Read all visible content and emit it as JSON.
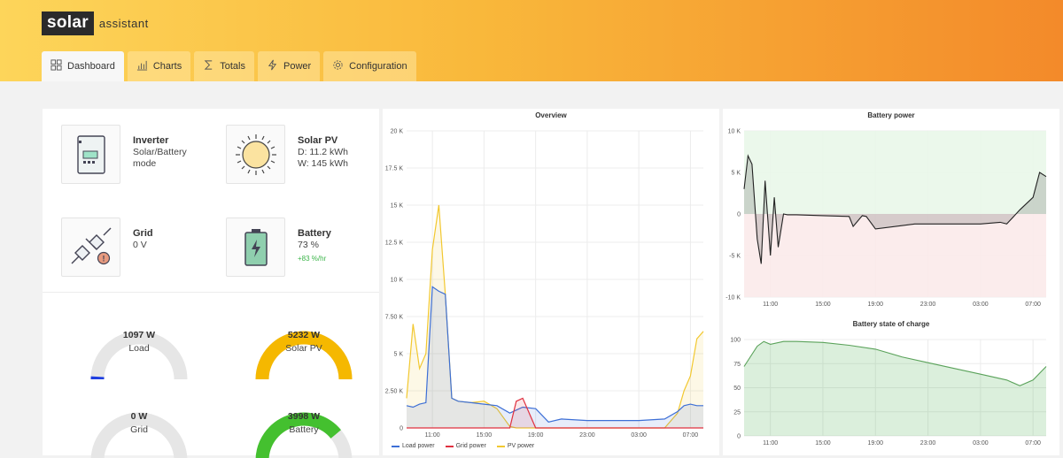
{
  "app": {
    "logo_box": "solar",
    "logo_text": "assistant"
  },
  "tabs": [
    {
      "label": "Dashboard",
      "icon": "grid-icon",
      "active": true
    },
    {
      "label": "Charts",
      "icon": "bar-chart-icon",
      "active": false
    },
    {
      "label": "Totals",
      "icon": "sigma-icon",
      "active": false
    },
    {
      "label": "Power",
      "icon": "lightning-icon",
      "active": false
    },
    {
      "label": "Configuration",
      "icon": "gear-icon",
      "active": false
    }
  ],
  "cards": {
    "inverter": {
      "title": "Inverter",
      "line1": "Solar/Battery",
      "line2": "mode"
    },
    "solar": {
      "title": "Solar PV",
      "line1": "D: 11.2 kWh",
      "line2": "W: 145 kWh"
    },
    "grid": {
      "title": "Grid",
      "line1": "0 V"
    },
    "battery": {
      "title": "Battery",
      "line1": "73 %",
      "sub": "+83 %/hr"
    }
  },
  "gauges": {
    "load": {
      "value": "1097 W",
      "label": "Load",
      "fraction": 0.02,
      "color": "#1f3fe0"
    },
    "solar": {
      "value": "5232 W",
      "label": "Solar PV",
      "fraction": 1.0,
      "color": "#f5b800"
    },
    "grid": {
      "value": "0 W",
      "label": "Grid",
      "fraction": 0.0,
      "color": "#cccccc"
    },
    "battery": {
      "value": "3998 W",
      "label": "Battery",
      "fraction": 0.78,
      "color": "#44c02f"
    }
  },
  "colors": {
    "load": "#3d6fd6",
    "grid": "#e0303f",
    "pv": "#f2c830",
    "pos_band": "#e9f7e9",
    "neg_band": "#fbeaea",
    "soc": "#4caf50"
  },
  "chart_data": [
    {
      "type": "line",
      "title": "Overview",
      "x_ticks": [
        "11:00",
        "15:00",
        "19:00",
        "23:00",
        "03:00",
        "07:00"
      ],
      "y_ticks": [
        "0",
        "2.50 K",
        "5 K",
        "7.50 K",
        "10 K",
        "12.5 K",
        "15 K",
        "17.5 K",
        "20 K"
      ],
      "ylim": [
        0,
        20000
      ],
      "x_hours": [
        9.0,
        9.5,
        10.0,
        10.5,
        11.0,
        11.5,
        12.0,
        12.5,
        13.0,
        14.0,
        15.0,
        16.0,
        17.0,
        17.5,
        18.0,
        19.0,
        20.0,
        21.0,
        23.0,
        25.0,
        27.0,
        29.0,
        30.0,
        30.5,
        31.0,
        31.5,
        32.0
      ],
      "series": [
        {
          "name": "Load power",
          "values": [
            1500,
            1400,
            1600,
            1700,
            9500,
            9200,
            9000,
            2000,
            1800,
            1700,
            1600,
            1500,
            1000,
            1200,
            1400,
            1300,
            400,
            600,
            500,
            500,
            500,
            600,
            1100,
            1500,
            1600,
            1500,
            1500
          ]
        },
        {
          "name": "Grid power",
          "values": [
            0,
            0,
            0,
            0,
            0,
            0,
            0,
            0,
            0,
            0,
            0,
            0,
            0,
            1800,
            2000,
            0,
            0,
            0,
            0,
            0,
            0,
            0,
            0,
            0,
            0,
            0,
            0
          ]
        },
        {
          "name": "PV power",
          "values": [
            2000,
            7000,
            4000,
            5000,
            12000,
            15000,
            9000,
            2000,
            1800,
            1700,
            1800,
            1300,
            100,
            0,
            0,
            0,
            0,
            0,
            0,
            0,
            0,
            0,
            1000,
            2500,
            3500,
            6000,
            6500
          ]
        }
      ]
    },
    {
      "type": "area",
      "title": "Battery power",
      "x_ticks": [
        "11:00",
        "15:00",
        "19:00",
        "23:00",
        "03:00",
        "07:00"
      ],
      "y_ticks": [
        "10 K",
        "5 K",
        "0",
        "-5 K",
        "-10 K"
      ],
      "ylim": [
        -10000,
        10000
      ],
      "x_hours": [
        9.0,
        9.3,
        9.6,
        10.0,
        10.3,
        10.6,
        11.0,
        11.3,
        11.6,
        12.0,
        12.3,
        12.6,
        13.0,
        15.0,
        17.0,
        17.3,
        18.0,
        18.3,
        19.0,
        22.0,
        27.0,
        28.5,
        29.0,
        30.0,
        31.0,
        31.5,
        32.0
      ],
      "series": [
        {
          "name": "",
          "values": [
            3000,
            7000,
            6000,
            -3000,
            -6000,
            4000,
            -5000,
            2000,
            -4000,
            0,
            -100,
            -100,
            -100,
            -200,
            -300,
            -1500,
            -200,
            -300,
            -1800,
            -1200,
            -1200,
            -1000,
            -1200,
            500,
            2000,
            5000,
            4500
          ]
        }
      ]
    },
    {
      "type": "area",
      "title": "Battery state of charge",
      "x_ticks": [
        "11:00",
        "15:00",
        "19:00",
        "23:00",
        "03:00",
        "07:00"
      ],
      "y_ticks": [
        "100",
        "75",
        "50",
        "25",
        "0"
      ],
      "ylim": [
        0,
        100
      ],
      "x_hours": [
        9.0,
        10.0,
        10.5,
        11.0,
        12.0,
        13.0,
        15.0,
        17.0,
        19.0,
        21.0,
        23.0,
        25.0,
        27.0,
        29.0,
        30.0,
        31.0,
        32.0
      ],
      "series": [
        {
          "name": "",
          "values": [
            72,
            93,
            98,
            95,
            98,
            98,
            97,
            94,
            90,
            82,
            76,
            70,
            64,
            58,
            52,
            58,
            72
          ]
        }
      ]
    }
  ]
}
